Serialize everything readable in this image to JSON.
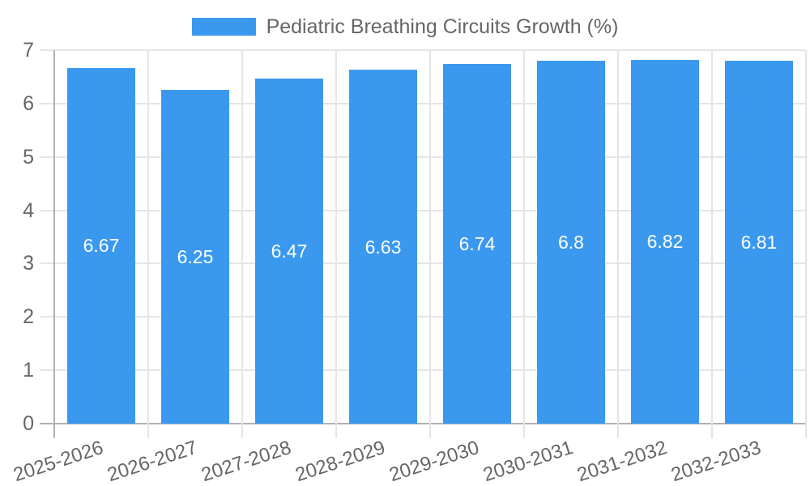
{
  "chart_data": {
    "type": "bar",
    "title": "Pediatric Breathing Circuits Growth (%)",
    "categories": [
      "2025-2026",
      "2026-2027",
      "2027-2028",
      "2028-2029",
      "2029-2030",
      "2030-2031",
      "2031-2032",
      "2032-2033"
    ],
    "values": [
      6.67,
      6.25,
      6.47,
      6.63,
      6.74,
      6.8,
      6.82,
      6.81
    ],
    "value_labels": [
      "6.67",
      "6.25",
      "6.47",
      "6.63",
      "6.74",
      "6.8",
      "6.82",
      "6.81"
    ],
    "xlabel": "",
    "ylabel": "",
    "ylim": [
      0,
      7
    ],
    "ytick_step": 1,
    "ytick_labels": [
      "0",
      "1",
      "2",
      "3",
      "4",
      "5",
      "6",
      "7"
    ],
    "grid": true,
    "legend_position": "top-center",
    "x_label_rotation_deg": -18,
    "colors": {
      "bar": "#3A99EE",
      "bar_value_label": "#FFFFFF",
      "axis_text": "#666666",
      "gridline": "#E5E5E7",
      "axis_line": "#B1B1B4",
      "background": "#FFFFFF"
    }
  },
  "legend": {
    "items": [
      {
        "label": "Pediatric Breathing Circuits Growth (%)",
        "swatch_color": "#3A99EE"
      }
    ]
  }
}
